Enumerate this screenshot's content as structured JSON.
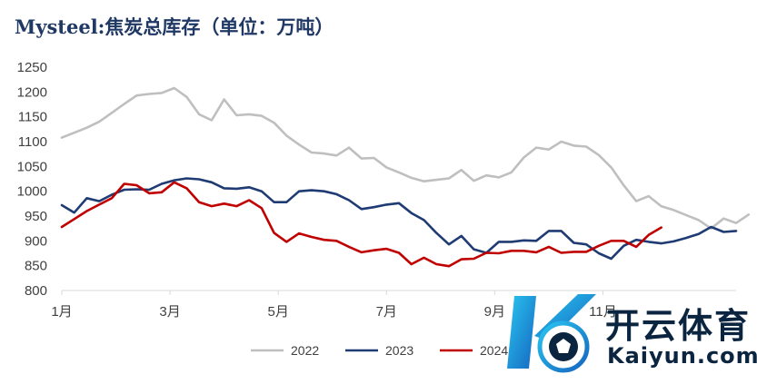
{
  "chart_data": {
    "type": "line",
    "title": "Mysteel:焦炭总库存（单位：万吨）",
    "ylim": [
      800,
      1250
    ],
    "y_ticks": [
      "800",
      "850",
      "900",
      "950",
      "1000",
      "1050",
      "1100",
      "1150",
      "1200",
      "1250"
    ],
    "x_tick_labels": [
      "1月",
      "3月",
      "5月",
      "7月",
      "9月",
      "11月"
    ],
    "weeks_per_year": 52,
    "legend_position": "bottom",
    "grid": false,
    "series": [
      {
        "name": "2022",
        "color": "#bfbfbf",
        "values": [
          1108,
          1118,
          1128,
          1140,
          1158,
          1176,
          1193,
          1196,
          1198,
          1208,
          1190,
          1155,
          1143,
          1185,
          1153,
          1155,
          1152,
          1138,
          1112,
          1094,
          1078,
          1076,
          1072,
          1088,
          1066,
          1067,
          1048,
          1038,
          1027,
          1020,
          1023,
          1026,
          1043,
          1021,
          1032,
          1028,
          1038,
          1068,
          1088,
          1084,
          1100,
          1092,
          1090,
          1073,
          1048,
          1012,
          980,
          990,
          970,
          962,
          952,
          942,
          925,
          945,
          936,
          953
        ]
      },
      {
        "name": "2023",
        "color": "#1f3b73",
        "values": [
          972,
          957,
          986,
          980,
          993,
          1003,
          1004,
          1003,
          1015,
          1022,
          1026,
          1024,
          1018,
          1006,
          1005,
          1008,
          1000,
          978,
          978,
          1000,
          1002,
          1000,
          994,
          982,
          964,
          968,
          973,
          976,
          956,
          942,
          916,
          893,
          910,
          883,
          876,
          898,
          898,
          901,
          900,
          920,
          920,
          896,
          893,
          875,
          864,
          890,
          902,
          898,
          895,
          899,
          906,
          914,
          928,
          918,
          920
        ]
      },
      {
        "name": "2024",
        "color": "#c00000",
        "values": [
          928,
          944,
          960,
          973,
          986,
          1015,
          1012,
          996,
          998,
          1018,
          1006,
          978,
          970,
          975,
          970,
          982,
          966,
          916,
          898,
          915,
          908,
          902,
          900,
          888,
          877,
          881,
          884,
          876,
          853,
          866,
          853,
          849,
          863,
          864,
          876,
          875,
          880,
          880,
          877,
          888,
          876,
          878,
          878,
          890,
          900,
          900,
          888,
          912,
          927
        ]
      }
    ]
  },
  "watermark": {
    "brand_cn": "开云体育",
    "brand_en": "Kaiyun.com"
  }
}
